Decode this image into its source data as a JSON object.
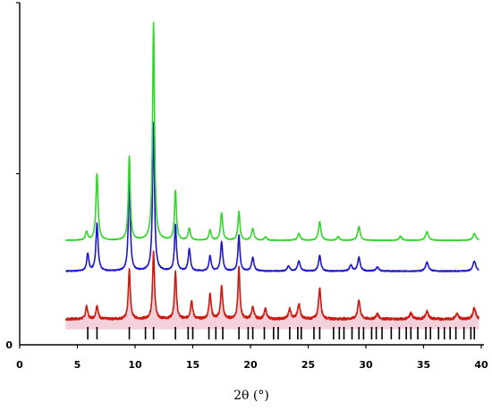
{
  "chart_data": {
    "type": "line",
    "title": "",
    "xlabel": "2θ (°)",
    "ylabel": "",
    "xlim": [
      0,
      40
    ],
    "ylim": [
      0,
      100
    ],
    "x_ticks": [
      0,
      5,
      10,
      15,
      20,
      25,
      30,
      35,
      40
    ],
    "y_ticks": [
      0,
      50,
      100
    ],
    "y_tick_labels": [],
    "grid": false,
    "legend": "none",
    "series": [
      {
        "color": "#cc1a0e",
        "fill": "#f2c8d4",
        "baseline": 7.5,
        "noise": 0.35,
        "peaks": [
          [
            5.8,
            3.8,
            0.11
          ],
          [
            6.7,
            4.0,
            0.11
          ],
          [
            9.5,
            14.5,
            0.1
          ],
          [
            11.6,
            19.5,
            0.1
          ],
          [
            13.5,
            14.0,
            0.1
          ],
          [
            14.9,
            5.5,
            0.11
          ],
          [
            16.5,
            7.5,
            0.11
          ],
          [
            17.5,
            9.5,
            0.11
          ],
          [
            19.0,
            15.0,
            0.1
          ],
          [
            20.2,
            3.5,
            0.12
          ],
          [
            21.3,
            3.0,
            0.12
          ],
          [
            23.4,
            3.0,
            0.13
          ],
          [
            24.2,
            4.5,
            0.13
          ],
          [
            26.0,
            9.0,
            0.12
          ],
          [
            29.4,
            5.5,
            0.13
          ],
          [
            31.0,
            1.5,
            0.14
          ],
          [
            33.9,
            1.8,
            0.14
          ],
          [
            35.3,
            2.2,
            0.15
          ],
          [
            37.9,
            1.5,
            0.15
          ],
          [
            39.4,
            3.2,
            0.15
          ]
        ]
      },
      {
        "color": "#1c18cc",
        "fill": "none",
        "baseline": 21.5,
        "noise": 0.15,
        "peaks": [
          [
            5.9,
            5.0,
            0.11
          ],
          [
            6.7,
            14.0,
            0.11
          ],
          [
            9.5,
            27.0,
            0.1
          ],
          [
            11.6,
            43.5,
            0.1
          ],
          [
            13.5,
            13.5,
            0.1
          ],
          [
            14.7,
            6.5,
            0.11
          ],
          [
            16.5,
            4.5,
            0.11
          ],
          [
            17.5,
            8.5,
            0.11
          ],
          [
            19.0,
            10.5,
            0.1
          ],
          [
            20.2,
            4.0,
            0.12
          ],
          [
            23.3,
            1.5,
            0.13
          ],
          [
            24.2,
            3.0,
            0.13
          ],
          [
            26.0,
            4.5,
            0.12
          ],
          [
            28.7,
            1.8,
            0.13
          ],
          [
            29.4,
            4.0,
            0.13
          ],
          [
            31.0,
            1.2,
            0.14
          ],
          [
            35.3,
            2.6,
            0.15
          ],
          [
            39.4,
            3.0,
            0.15
          ]
        ]
      },
      {
        "color": "#33d62a",
        "fill": "none",
        "baseline": 30.5,
        "noise": 0.1,
        "peaks": [
          [
            5.8,
            2.5,
            0.11
          ],
          [
            6.7,
            19.5,
            0.11
          ],
          [
            9.5,
            24.5,
            0.1
          ],
          [
            11.6,
            63.5,
            0.1
          ],
          [
            13.5,
            14.5,
            0.1
          ],
          [
            14.7,
            3.5,
            0.11
          ],
          [
            16.5,
            3.0,
            0.11
          ],
          [
            17.5,
            8.0,
            0.11
          ],
          [
            19.0,
            8.5,
            0.1
          ],
          [
            20.2,
            3.5,
            0.12
          ],
          [
            21.3,
            1.0,
            0.12
          ],
          [
            24.2,
            2.0,
            0.13
          ],
          [
            26.0,
            5.5,
            0.12
          ],
          [
            27.6,
            1.0,
            0.13
          ],
          [
            29.4,
            4.0,
            0.13
          ],
          [
            33.0,
            1.2,
            0.14
          ],
          [
            35.3,
            2.5,
            0.15
          ],
          [
            39.4,
            2.0,
            0.15
          ]
        ]
      }
    ],
    "reference_ticks": {
      "color": "#000000",
      "positions": [
        5.9,
        6.7,
        9.5,
        10.9,
        11.6,
        13.5,
        14.6,
        15.0,
        16.4,
        17.0,
        17.6,
        19.0,
        19.8,
        20.2,
        21.2,
        22.0,
        22.4,
        23.4,
        24.1,
        24.4,
        25.5,
        26.0,
        27.2,
        27.7,
        28.1,
        28.8,
        29.4,
        29.8,
        30.5,
        30.9,
        31.4,
        32.2,
        32.9,
        33.5,
        33.9,
        34.5,
        35.2,
        35.6,
        36.3,
        36.8,
        37.3,
        37.8,
        38.5,
        39.1,
        39.4
      ]
    }
  }
}
